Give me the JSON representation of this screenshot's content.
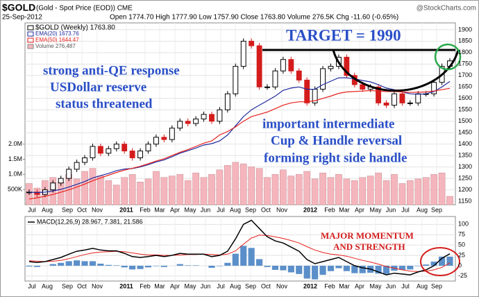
{
  "chart_data": {
    "type": "stock",
    "title": "$GOLD",
    "subtitle": "(Gold - Spot Price (EOD)) CME",
    "source": "@StockCharts.com",
    "date": "25-Sep-2012",
    "quote": "Open 1774.70 High 1777.90 Low 1757.90 Close 1763.80 Volume 276.5K Chg -11.60 (-0.65%)",
    "legend": [
      "$GOLD (Weekly) 1763.80",
      "EMA(20) 1673.76",
      "EMA(50) 1644.47",
      "Volume 276,487"
    ],
    "macd_legend": "MACD(12,26,9) 28.967, 7.381, 21.586",
    "annotations": [
      "TARGET = 1990",
      "strong anti-QE response",
      "USDollar reserve",
      "status threatened",
      "important intermediate",
      "Cup & Handle reversal",
      "forming right side handle",
      "MAJOR MOMENTUM",
      "AND STRENGTH"
    ],
    "months": [
      "Jul",
      "Aug",
      "Sep",
      "Oct",
      "Nov",
      "2011",
      "Feb",
      "Mar",
      "Apr",
      "May",
      "Jun",
      "Jul",
      "Aug",
      "Sep",
      "Oct",
      "Nov",
      "2012",
      "Feb",
      "Mar",
      "Apr",
      "May",
      "Jun",
      "Jul",
      "Aug",
      "Sep"
    ],
    "series": [
      {
        "name": "$GOLD",
        "color": "#000000",
        "values": [
          1190,
          1180,
          1200,
          1230,
          1250,
          1290,
          1320,
          1340,
          1390,
          1360,
          1380,
          1400,
          1370,
          1340,
          1370,
          1400,
          1430,
          1420,
          1470,
          1500,
          1490,
          1510,
          1530,
          1500,
          1550,
          1620,
          1740,
          1850,
          1830,
          1650,
          1650,
          1720,
          1770,
          1720,
          1680,
          1580,
          1640,
          1730,
          1740,
          1780,
          1700,
          1660,
          1640,
          1650,
          1580,
          1570,
          1620,
          1580,
          1580,
          1620,
          1620,
          1670,
          1740,
          1764
        ]
      },
      {
        "name": "EMA(20)",
        "color": "#1f2a9e",
        "values": [
          1190,
          1188,
          1190,
          1195,
          1202,
          1212,
          1224,
          1236,
          1252,
          1262,
          1272,
          1284,
          1291,
          1293,
          1300,
          1310,
          1322,
          1331,
          1345,
          1360,
          1371,
          1383,
          1396,
          1402,
          1414,
          1440,
          1480,
          1520,
          1550,
          1570,
          1590,
          1610,
          1635,
          1645,
          1650,
          1640,
          1640,
          1660,
          1675,
          1690,
          1690,
          1685,
          1678,
          1672,
          1660,
          1645,
          1638,
          1628,
          1620,
          1618,
          1620,
          1630,
          1650,
          1674
        ]
      },
      {
        "name": "EMA(50)",
        "color": "#e8211c",
        "values": [
          1160,
          1165,
          1172,
          1180,
          1190,
          1200,
          1212,
          1225,
          1240,
          1252,
          1264,
          1276,
          1286,
          1294,
          1303,
          1314,
          1326,
          1336,
          1350,
          1364,
          1376,
          1390,
          1404,
          1414,
          1440,
          1455,
          1475,
          1500,
          1520,
          1530,
          1540,
          1555,
          1570,
          1580,
          1585,
          1585,
          1590,
          1600,
          1610,
          1622,
          1628,
          1630,
          1632,
          1634,
          1632,
          1630,
          1630,
          1628,
          1626,
          1627,
          1628,
          1632,
          1638,
          1644
        ]
      }
    ],
    "volume": {
      "name": "Volume",
      "color": "#f4b6bc",
      "values": [
        700000,
        550000,
        800000,
        900000,
        750000,
        1000000,
        850000,
        1100000,
        1200000,
        950000,
        800000,
        650000,
        900000,
        1000000,
        750000,
        850000,
        1100000,
        900000,
        950000,
        1000000,
        800000,
        1050000,
        900000,
        1000000,
        1150000,
        1300000,
        1400000,
        1350000,
        1250000,
        1200000,
        900000,
        1000000,
        1150000,
        950000,
        1000000,
        1100000,
        850000,
        1050000,
        900000,
        1000000,
        850000,
        800000,
        900000,
        950000,
        1050000,
        800000,
        1000000,
        700000,
        800000,
        850000,
        900000,
        1000000,
        1050000,
        276487
      ]
    },
    "ylim": [
      1135,
      1930
    ],
    "yticks": [
      1150,
      1200,
      1250,
      1300,
      1350,
      1400,
      1450,
      1500,
      1550,
      1600,
      1650,
      1700,
      1750,
      1800,
      1850,
      1900
    ],
    "vlim": [
      0,
      6000000
    ],
    "vticks": [
      {
        "value": 500000,
        "label": "500K"
      },
      {
        "value": 1000000,
        "label": "1.0M"
      },
      {
        "value": 1500000,
        "label": "1.5M"
      },
      {
        "value": 2000000,
        "label": "2.0M"
      }
    ],
    "macd": {
      "name": "MACD",
      "color": "#000000",
      "values": [
        10,
        8,
        10,
        15,
        20,
        28,
        35,
        38,
        42,
        38,
        36,
        36,
        30,
        22,
        20,
        22,
        25,
        22,
        25,
        30,
        28,
        28,
        28,
        22,
        25,
        35,
        65,
        100,
        110,
        90,
        70,
        60,
        55,
        45,
        35,
        15,
        5,
        10,
        15,
        20,
        10,
        0,
        -5,
        -8,
        -15,
        -22,
        -18,
        -20,
        -22,
        -15,
        -10,
        0,
        18,
        29
      ]
    },
    "signal": {
      "name": "Signal",
      "color": "#e8211c",
      "values": [
        12,
        11,
        10,
        11,
        13,
        17,
        22,
        27,
        31,
        33,
        34,
        35,
        34,
        31,
        28,
        26,
        26,
        25,
        25,
        26,
        27,
        27,
        28,
        27,
        26,
        28,
        36,
        52,
        67,
        74,
        73,
        70,
        66,
        61,
        55,
        46,
        38,
        32,
        28,
        26,
        23,
        18,
        13,
        9,
        4,
        -2,
        -6,
        -10,
        -13,
        -14,
        -13,
        -10,
        -4,
        7
      ]
    },
    "histogram": {
      "name": "Histogram",
      "color": "#5b8fc9",
      "values": [
        -2,
        -3,
        0,
        4,
        7,
        11,
        13,
        11,
        11,
        5,
        2,
        1,
        -4,
        -9,
        -8,
        -4,
        -1,
        -3,
        0,
        4,
        1,
        1,
        0,
        -5,
        -1,
        7,
        29,
        48,
        43,
        16,
        -3,
        -10,
        -11,
        -16,
        -20,
        -31,
        -33,
        -22,
        -13,
        -6,
        -13,
        -18,
        -18,
        -17,
        -19,
        -20,
        -12,
        -10,
        -9,
        -1,
        3,
        10,
        22,
        22
      ]
    },
    "y2lim": [
      -37,
      119
    ],
    "y2ticks": [
      -25,
      0,
      25,
      50,
      75,
      100
    ],
    "grid": true
  }
}
